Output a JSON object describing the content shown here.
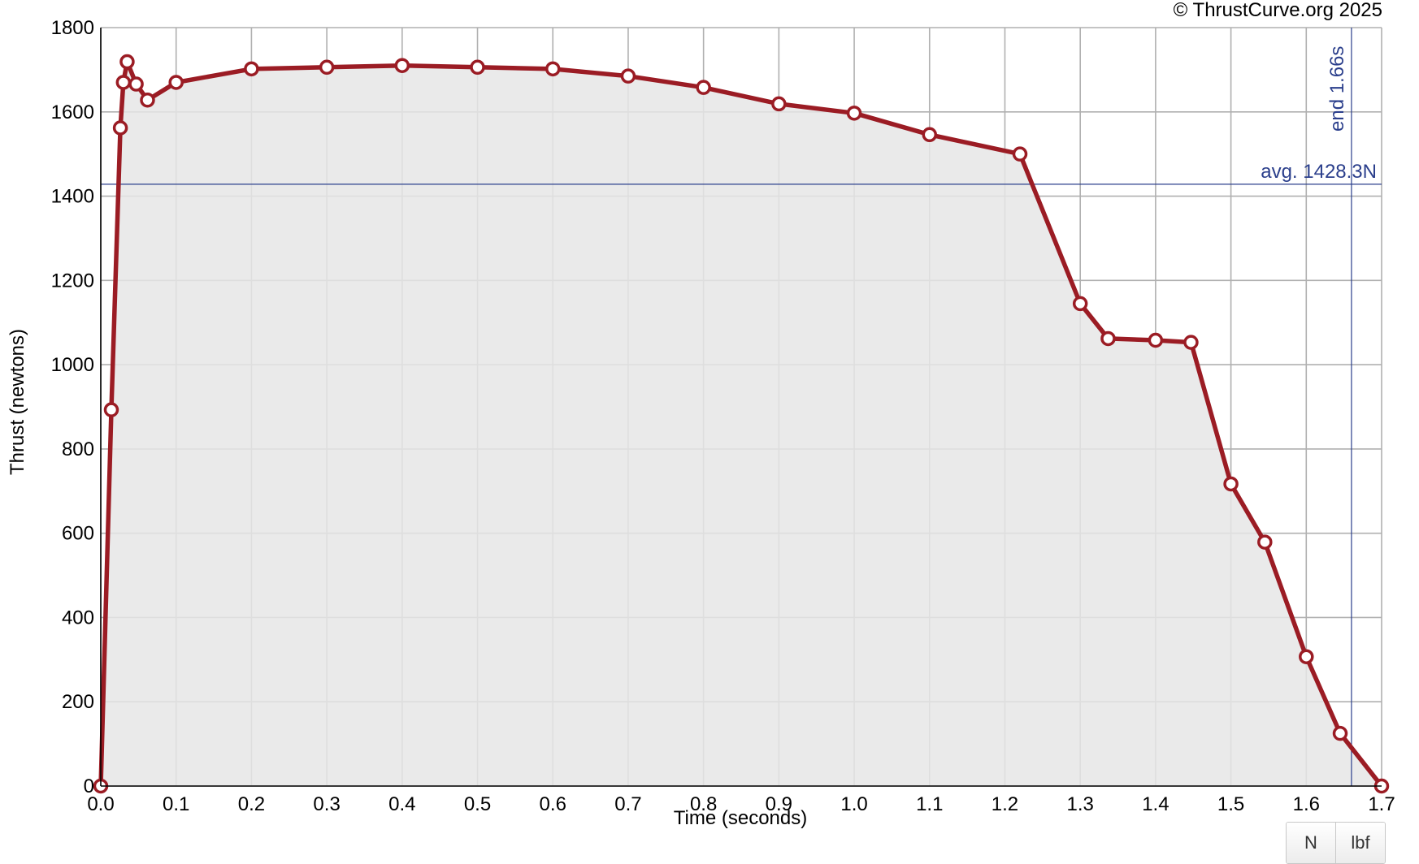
{
  "copyright": "© ThrustCurve.org 2025",
  "units": {
    "newtons": "N",
    "pounds": "lbf"
  },
  "chart_data": {
    "type": "line",
    "title": "",
    "xlabel": "Time (seconds)",
    "ylabel": "Thrust (newtons)",
    "xlim": [
      0,
      1.7
    ],
    "ylim": [
      0,
      1800
    ],
    "xticks": [
      "0.0",
      "0.1",
      "0.2",
      "0.3",
      "0.4",
      "0.5",
      "0.6",
      "0.7",
      "0.8",
      "0.9",
      "1.0",
      "1.1",
      "1.2",
      "1.3",
      "1.4",
      "1.5",
      "1.6",
      "1.7"
    ],
    "yticks": [
      "0",
      "200",
      "400",
      "600",
      "800",
      "1000",
      "1200",
      "1400",
      "1600",
      "1800"
    ],
    "grid": true,
    "series": [
      {
        "color": "#9b1c24",
        "fill": "#e6e6e6",
        "points": [
          [
            0.0,
            0
          ],
          [
            0.014,
            893
          ],
          [
            0.026,
            1562
          ],
          [
            0.03,
            1670
          ],
          [
            0.035,
            1719
          ],
          [
            0.047,
            1666
          ],
          [
            0.062,
            1628
          ],
          [
            0.1,
            1670
          ],
          [
            0.2,
            1702
          ],
          [
            0.3,
            1706
          ],
          [
            0.4,
            1710
          ],
          [
            0.5,
            1706
          ],
          [
            0.6,
            1702
          ],
          [
            0.7,
            1685
          ],
          [
            0.8,
            1658
          ],
          [
            0.9,
            1619
          ],
          [
            1.0,
            1597
          ],
          [
            1.1,
            1546
          ],
          [
            1.22,
            1500
          ],
          [
            1.3,
            1145
          ],
          [
            1.337,
            1062
          ],
          [
            1.4,
            1058
          ],
          [
            1.447,
            1053
          ],
          [
            1.5,
            717
          ],
          [
            1.545,
            579
          ],
          [
            1.6,
            307
          ],
          [
            1.645,
            125
          ],
          [
            1.7,
            0
          ]
        ]
      }
    ],
    "average": {
      "value": 1428.3,
      "label": "avg. 1428.3N",
      "color": "#2b3f8c"
    },
    "end": {
      "value": 1.66,
      "label": "end 1.66s",
      "color": "#2b3f8c"
    }
  }
}
